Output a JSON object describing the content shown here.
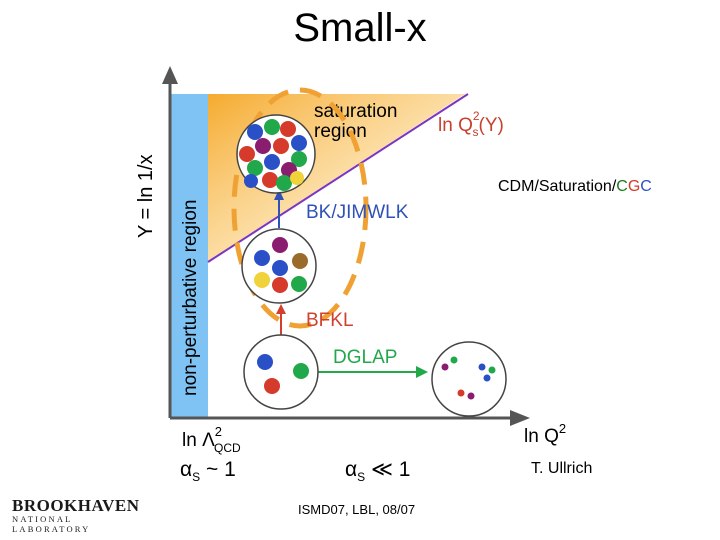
{
  "title": "Small-x",
  "axes": {
    "y_label": "Y = ln 1/x",
    "x_label_base": "ln Q",
    "x_label_sup": "2",
    "x_origin_base": "ln Λ",
    "x_origin_sup": "2",
    "x_origin_sub": "QCD"
  },
  "regions": {
    "nonperturbative": "non-perturbative region",
    "saturation_line1": "saturation",
    "saturation_line2": "region"
  },
  "curve_label": {
    "base": "ln Q",
    "sub": "s",
    "sup": "2",
    "tail": "(Y)"
  },
  "evolution": {
    "bk": "BK/JIMWLK",
    "bfkl": "BFKL",
    "dglap": "DGLAP"
  },
  "coupling": {
    "strong_base": "α",
    "strong_sub": "S",
    "strong_tail": " ~ 1",
    "weak_base": "α",
    "weak_sub": "S",
    "weak_tail": " ≪ 1"
  },
  "annotation": {
    "prefix": "CDM/Saturation/",
    "c1": "C",
    "g": "G",
    "c2": "C"
  },
  "credit": "T. Ullrich",
  "footer": "ISMD07, LBL, 08/07",
  "logo": {
    "name": "BROOKHAVEN",
    "sub": "NATIONAL LABORATORY"
  },
  "colors": {
    "nonpert_band": "#7ec3f3",
    "saturation_fill": "#f7b23b",
    "diagonal": "#7b35c4",
    "curve_label": "#c9402f",
    "evolution_arrow": "#2f52b8",
    "bfkl_arrow": "#d1402f",
    "dglap_arrow": "#21a84a",
    "dashed_ellipse": "#f0a133",
    "cgc_c": "#1a7a1a",
    "cgc_g": "#d63a2a",
    "cgc_c2": "#2a50c8"
  }
}
